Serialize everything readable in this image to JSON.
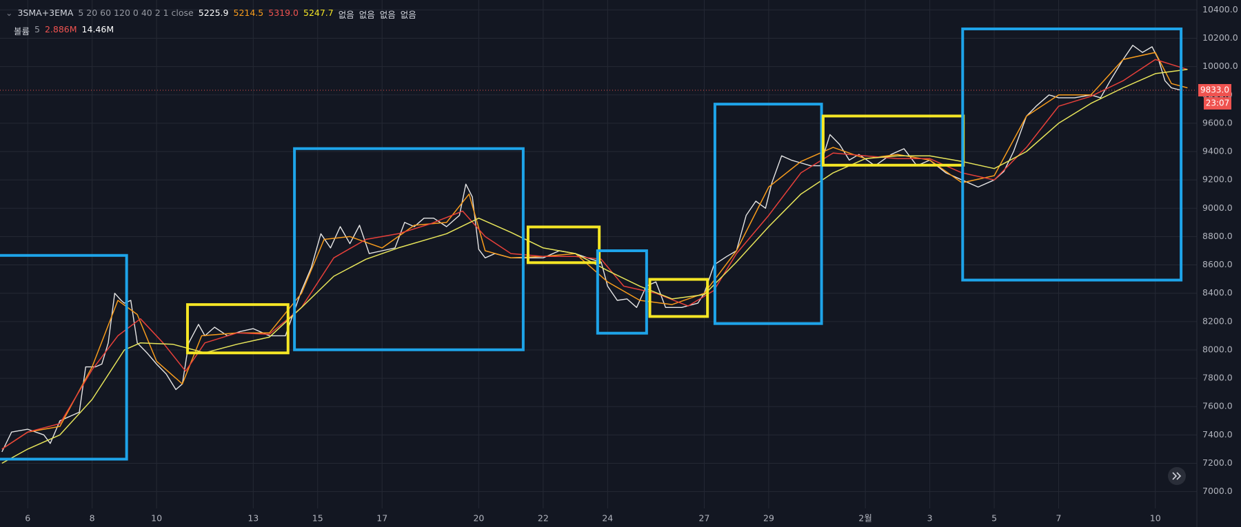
{
  "chart_data": {
    "type": "line",
    "header": {
      "indicator": "3SMA+3EMA",
      "indicator_params": "5 20 60 120 0 40 2 1 close",
      "indicator_values": [
        {
          "label": "5225.9",
          "color": "#ffffff"
        },
        {
          "label": "5214.5",
          "color": "#f89c1c"
        },
        {
          "label": "5319.0",
          "color": "#ef5350"
        },
        {
          "label": "5247.7",
          "color": "#f5e625"
        }
      ],
      "none_labels": [
        "없음",
        "없음",
        "없음",
        "없음"
      ],
      "volume": "볼륨",
      "volume_param": "5",
      "volume_values": [
        {
          "label": "2.886M",
          "color": "#ef5350"
        },
        {
          "label": "14.46M",
          "color": "#ffffff"
        }
      ]
    },
    "xlim": [
      5.14,
      42.29
    ],
    "xticks": [
      6,
      8,
      10,
      13,
      15,
      17,
      20,
      22,
      24,
      27,
      29,
      {
        "value": 32,
        "label": "2월"
      },
      {
        "value": 34,
        "label": "3"
      },
      {
        "value": 36,
        "label": "5"
      },
      {
        "value": 38,
        "label": "7"
      },
      {
        "value": 41,
        "label": "10"
      }
    ],
    "ylim": [
      6750,
      10470
    ],
    "yticks": [
      {
        "value": 7000,
        "label": "7000.0"
      },
      {
        "value": 7200,
        "label": "7200.0"
      },
      {
        "value": 7400,
        "label": "7400.0"
      },
      {
        "value": 7600,
        "label": "7600.0"
      },
      {
        "value": 7800,
        "label": "7800.0"
      },
      {
        "value": 8000,
        "label": "8000.0"
      },
      {
        "value": 8200,
        "label": "8200.0"
      },
      {
        "value": 8400,
        "label": "8400.0"
      },
      {
        "value": 8600,
        "label": "8600.0"
      },
      {
        "value": 8800,
        "label": "8800.0"
      },
      {
        "value": 9000,
        "label": "9000.0"
      },
      {
        "value": 9200,
        "label": "9200.0"
      },
      {
        "value": 9400,
        "label": "9400.0"
      },
      {
        "value": 9600,
        "label": "9600.0"
      },
      {
        "value": 9800,
        "label": "9800.0"
      },
      {
        "value": 10000,
        "label": "10000.0"
      },
      {
        "value": 10200,
        "label": "10200.0"
      },
      {
        "value": 10400,
        "label": "10400.0"
      }
    ],
    "grid": true,
    "last_price": {
      "value": 9833,
      "label": "9833.0"
    },
    "countdown": "23:07",
    "series": [
      {
        "color": "#e6e6e6",
        "width": 1.4,
        "x": [
          5.2,
          5.5,
          6,
          6.5,
          6.7,
          7,
          7.4,
          7.6,
          7.8,
          8.1,
          8.3,
          8.5,
          8.7,
          8.9,
          9.0,
          9.2,
          9.4,
          9.7,
          10.0,
          10.3,
          10.6,
          10.8,
          11.0,
          11.3,
          11.5,
          11.8,
          12.2,
          12.6,
          13.0,
          13.5,
          14.0,
          14.5,
          14.8,
          15.1,
          15.4,
          15.7,
          16.0,
          16.3,
          16.6,
          17.0,
          17.4,
          17.7,
          18.0,
          18.3,
          18.6,
          19.0,
          19.4,
          19.6,
          19.8,
          20.0,
          20.2,
          20.5,
          21.0,
          21.5,
          22.0,
          22.5,
          23.0,
          23.5,
          23.8,
          24.0,
          24.3,
          24.6,
          24.9,
          25.2,
          25.5,
          25.8,
          26.3,
          26.8,
          27.0,
          27.3,
          27.7,
          28.0,
          28.3,
          28.6,
          28.9,
          29.1,
          29.4,
          29.7,
          30.0,
          30.3,
          30.6,
          30.9,
          31.2,
          31.5,
          31.8,
          32.3,
          32.8,
          33.2,
          33.6,
          34.0,
          34.5,
          35.0,
          35.5,
          36.0,
          36.3,
          36.6,
          37.0,
          37.3,
          37.7,
          38.0,
          38.5,
          39.0,
          39.3,
          39.6,
          40.0,
          40.3,
          40.6,
          40.9,
          41.1,
          41.3,
          41.5,
          41.8
        ],
        "values": [
          7280,
          7420,
          7440,
          7400,
          7340,
          7500,
          7540,
          7560,
          7880,
          7880,
          7900,
          8050,
          8400,
          8350,
          8330,
          8350,
          8050,
          7980,
          7900,
          7830,
          7720,
          7760,
          8050,
          8180,
          8100,
          8160,
          8100,
          8130,
          8150,
          8100,
          8100,
          8420,
          8580,
          8820,
          8720,
          8870,
          8750,
          8880,
          8680,
          8700,
          8720,
          8900,
          8870,
          8930,
          8930,
          8870,
          8950,
          9170,
          9080,
          8710,
          8650,
          8680,
          8650,
          8650,
          8650,
          8700,
          8680,
          8640,
          8620,
          8450,
          8350,
          8360,
          8300,
          8450,
          8480,
          8300,
          8300,
          8330,
          8400,
          8600,
          8660,
          8700,
          8950,
          9050,
          9000,
          9180,
          9370,
          9340,
          9320,
          9300,
          9300,
          9520,
          9450,
          9340,
          9380,
          9300,
          9380,
          9420,
          9300,
          9340,
          9250,
          9200,
          9150,
          9200,
          9260,
          9400,
          9650,
          9720,
          9800,
          9780,
          9780,
          9800,
          9780,
          9900,
          10050,
          10150,
          10100,
          10140,
          10050,
          9900,
          9850,
          9833
        ]
      },
      {
        "color": "#f89c1c",
        "width": 1.5,
        "x": [
          5.2,
          6,
          7,
          8,
          8.8,
          9.4,
          10,
          10.8,
          11.4,
          12.5,
          13.5,
          14.5,
          15.2,
          16,
          17,
          18,
          19,
          19.7,
          20.2,
          21,
          22,
          23,
          24,
          25,
          26,
          27,
          28,
          29,
          30,
          31,
          32,
          33,
          34,
          35,
          36,
          37,
          38,
          39,
          40,
          41,
          41.5,
          42
        ],
        "values": [
          7300,
          7420,
          7460,
          7880,
          8350,
          8250,
          7920,
          7760,
          8100,
          8120,
          8120,
          8400,
          8780,
          8800,
          8720,
          8880,
          8900,
          9100,
          8700,
          8650,
          8660,
          8680,
          8480,
          8350,
          8320,
          8400,
          8700,
          9150,
          9330,
          9430,
          9350,
          9380,
          9340,
          9180,
          9230,
          9650,
          9800,
          9800,
          10050,
          10100,
          9880,
          9850
        ]
      },
      {
        "color": "#e8403a",
        "width": 1.5,
        "x": [
          5.2,
          6,
          7,
          8,
          8.8,
          9.5,
          10.2,
          10.9,
          11.5,
          12.5,
          13.5,
          14.5,
          15.5,
          16.5,
          17.5,
          18.5,
          19.5,
          20.2,
          21,
          22,
          23,
          23.8,
          24.5,
          25.5,
          26.5,
          27.3,
          28,
          29,
          30,
          31,
          32,
          33,
          34,
          35,
          36,
          37,
          38,
          39,
          40,
          41,
          42
        ],
        "values": [
          7300,
          7420,
          7480,
          7860,
          8100,
          8220,
          8050,
          7850,
          8050,
          8120,
          8110,
          8300,
          8650,
          8780,
          8820,
          8890,
          8980,
          8800,
          8680,
          8660,
          8660,
          8640,
          8450,
          8400,
          8310,
          8420,
          8680,
          8950,
          9250,
          9390,
          9370,
          9350,
          9350,
          9250,
          9200,
          9430,
          9720,
          9790,
          9900,
          10050,
          9980
        ]
      },
      {
        "color": "#e8e65a",
        "width": 1.5,
        "x": [
          5.2,
          6,
          7,
          8,
          9,
          9.5,
          10.5,
          11.5,
          12.5,
          13.5,
          14.5,
          15.5,
          16.5,
          17.5,
          19,
          20,
          21,
          22,
          23,
          24,
          25,
          26,
          27,
          28,
          29,
          30,
          31,
          32,
          33,
          34,
          35,
          36,
          37,
          38,
          39,
          40,
          41,
          42
        ],
        "values": [
          7200,
          7300,
          7400,
          7650,
          8000,
          8050,
          8040,
          7980,
          8040,
          8090,
          8300,
          8520,
          8640,
          8720,
          8820,
          8930,
          8830,
          8720,
          8680,
          8560,
          8450,
          8360,
          8390,
          8620,
          8870,
          9100,
          9250,
          9350,
          9370,
          9370,
          9330,
          9280,
          9400,
          9600,
          9740,
          9850,
          9950,
          9980
        ]
      }
    ],
    "boxes": [
      {
        "color": "#1ea4e9",
        "x": [
          5.0,
          9.07
        ],
        "y": [
          7229,
          8667
        ]
      },
      {
        "color": "#f5e625",
        "x": [
          10.96,
          14.08
        ],
        "y": [
          7979,
          8320
        ]
      },
      {
        "color": "#1ea4e9",
        "x": [
          14.28,
          21.38
        ],
        "y": [
          8001,
          9421
        ]
      },
      {
        "color": "#f5e625",
        "x": [
          21.53,
          23.74
        ],
        "y": [
          8616,
          8868
        ]
      },
      {
        "color": "#1ea4e9",
        "x": [
          23.69,
          25.21
        ],
        "y": [
          8118,
          8700
        ]
      },
      {
        "color": "#f5e625",
        "x": [
          25.31,
          27.1
        ],
        "y": [
          8236,
          8498
        ]
      },
      {
        "color": "#1ea4e9",
        "x": [
          27.33,
          30.64
        ],
        "y": [
          8186,
          9735
        ]
      },
      {
        "color": "#f5e625",
        "x": [
          30.69,
          35.04
        ],
        "y": [
          9304,
          9651
        ]
      },
      {
        "color": "#1ea4e9",
        "x": [
          35.02,
          41.8
        ],
        "y": [
          8493,
          10266
        ]
      }
    ]
  }
}
